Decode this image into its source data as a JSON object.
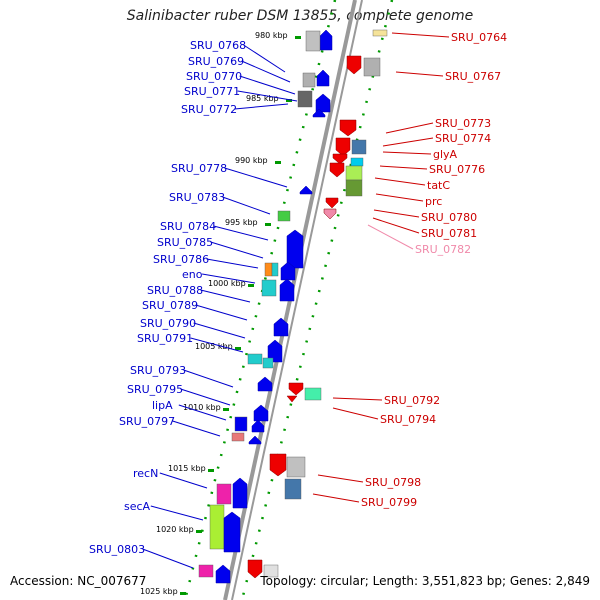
{
  "title": "Salinibacter ruber DSM 13855, complete genome",
  "footer": {
    "accession": "Accession: NC_007677",
    "summary": "Topology: circular; Length: 3,551,823 bp; Genes: 2,849"
  },
  "colors": {
    "left_label": "#0000cc",
    "right_label": "#cc0000",
    "right_label_faint": "#f08aaa",
    "ruler_tick": "#009900",
    "backbone": "#999999",
    "kbp_label": "#000000"
  },
  "kbp_marks": [
    "980 kbp",
    "985 kbp",
    "990 kbp",
    "995 kbp",
    "1000 kbp",
    "1005 kbp",
    "1010 kbp",
    "1015 kbp",
    "1020 kbp",
    "1025 kbp"
  ],
  "left_genes": [
    "SRU_0768",
    "SRU_0769",
    "SRU_0770",
    "SRU_0771",
    "SRU_0772",
    "SRU_0778",
    "SRU_0783",
    "SRU_0784",
    "SRU_0785",
    "SRU_0786",
    "eno",
    "SRU_0788",
    "SRU_0789",
    "SRU_0790",
    "SRU_0791",
    "SRU_0793",
    "SRU_0795",
    "lipA",
    "SRU_0797",
    "recN",
    "secA",
    "SRU_0803"
  ],
  "right_genes": [
    "SRU_0764",
    "SRU_0767",
    "SRU_0773",
    "SRU_0774",
    "glyA",
    "SRU_0776",
    "tatC",
    "prc",
    "SRU_0780",
    "SRU_0781",
    "SRU_0782",
    "SRU_0792",
    "SRU_0794",
    "SRU_0798",
    "SRU_0799"
  ]
}
